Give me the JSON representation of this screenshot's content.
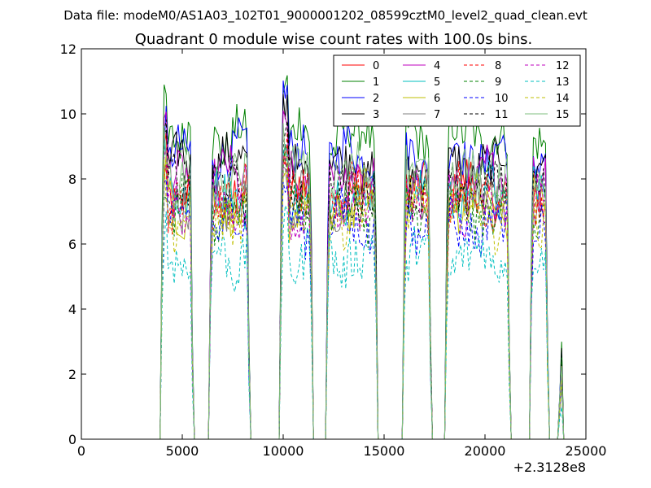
{
  "figure": {
    "suptitle": "Data file: modeM0/AS1A03_102T01_9000001202_08599cztM0_level2_quad_clean.evt",
    "title": "Quadrant 0 module wise count rates with 100.0s bins.",
    "x_offset_label": "+2.3128e8"
  },
  "chart_data": {
    "type": "line",
    "title": "Quadrant 0 module wise count rates with 100.0s bins.",
    "xlabel": "",
    "ylabel": "",
    "xlim": [
      0,
      25000
    ],
    "ylim": [
      0,
      12
    ],
    "x_ticks": [
      0,
      5000,
      10000,
      15000,
      20000,
      25000
    ],
    "y_ticks": [
      0,
      2,
      4,
      6,
      8,
      10,
      12
    ],
    "x_tick_labels": [
      "0",
      "5000",
      "10000",
      "15000",
      "20000",
      "25000"
    ],
    "y_tick_labels": [
      "0",
      "2",
      "4",
      "6",
      "8",
      "10",
      "12"
    ],
    "x_offset": 231280000,
    "grid": false,
    "legend_position": "top-right",
    "legend_columns": 4,
    "data_start": 3900,
    "data_end": 23900,
    "bin_seconds": 100,
    "on_intervals": [
      [
        3900,
        5550
      ],
      [
        6300,
        8350
      ],
      [
        9800,
        11500
      ],
      [
        12100,
        14700
      ],
      [
        15900,
        17350
      ],
      [
        18000,
        21250
      ],
      [
        22200,
        23150
      ],
      [
        23650,
        23900
      ]
    ],
    "series": [
      {
        "name": "0",
        "color": "#ff0000",
        "dash": "solid",
        "level": 7.6
      },
      {
        "name": "1",
        "color": "#008000",
        "dash": "solid",
        "level": 9.3
      },
      {
        "name": "2",
        "color": "#0000ff",
        "dash": "solid",
        "level": 8.7
      },
      {
        "name": "3",
        "color": "#000000",
        "dash": "solid",
        "level": 8.4
      },
      {
        "name": "4",
        "color": "#bf00bf",
        "dash": "solid",
        "level": 8.0
      },
      {
        "name": "5",
        "color": "#00bfbf",
        "dash": "solid",
        "level": 7.5
      },
      {
        "name": "6",
        "color": "#bfbf00",
        "dash": "solid",
        "level": 7.2
      },
      {
        "name": "7",
        "color": "#7f7f7f",
        "dash": "solid",
        "level": 7.3
      },
      {
        "name": "8",
        "color": "#ff0000",
        "dash": "dashed",
        "level": 7.4
      },
      {
        "name": "9",
        "color": "#008000",
        "dash": "dashed",
        "level": 7.0
      },
      {
        "name": "10",
        "color": "#0000ff",
        "dash": "dashed",
        "level": 6.6
      },
      {
        "name": "11",
        "color": "#000000",
        "dash": "dashed",
        "level": 7.7
      },
      {
        "name": "12",
        "color": "#bf00bf",
        "dash": "dashed",
        "level": 7.1
      },
      {
        "name": "13",
        "color": "#00bfbf",
        "dash": "dashed",
        "level": 5.6
      },
      {
        "name": "14",
        "color": "#bfbf00",
        "dash": "dashed",
        "level": 6.9
      },
      {
        "name": "15",
        "color": "#7fbf7f",
        "dash": "solid",
        "level": 8.1
      }
    ]
  }
}
